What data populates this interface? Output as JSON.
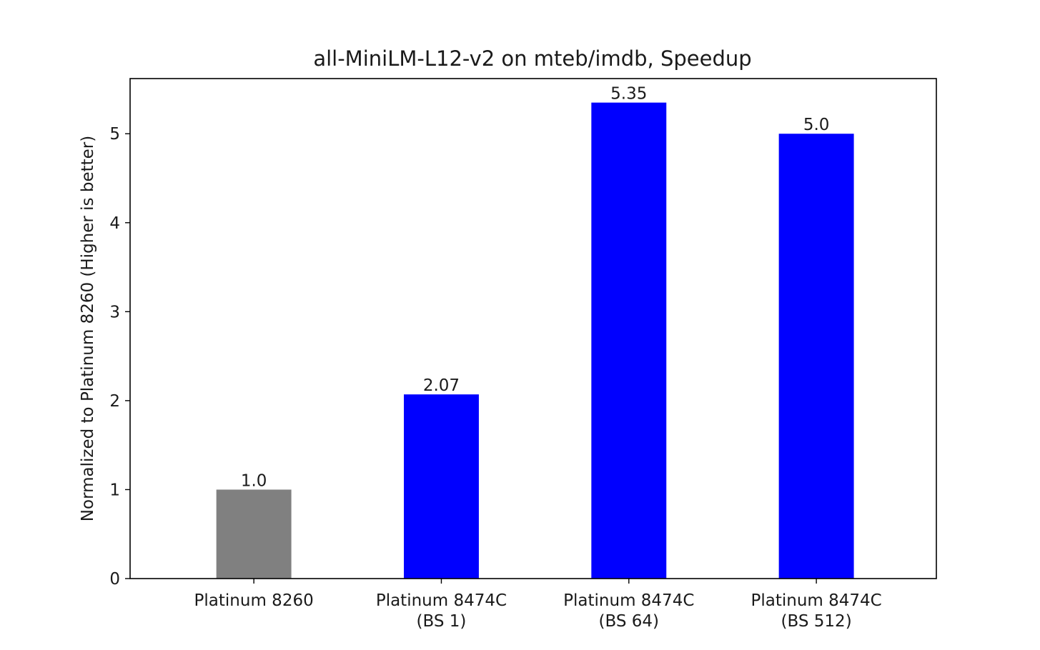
{
  "chart_data": {
    "type": "bar",
    "title": "all-MiniLM-L12-v2 on mteb/imdb, Speedup",
    "xlabel": "",
    "ylabel": "Normalized to Platinum 8260 (Higher is better)",
    "ylim": [
      0,
      5.62
    ],
    "yticks": [
      0,
      1,
      2,
      3,
      4,
      5
    ],
    "categories": [
      [
        "Platinum 8260"
      ],
      [
        "Platinum 8474C",
        "(BS 1)"
      ],
      [
        "Platinum 8474C",
        "(BS 64)"
      ],
      [
        "Platinum 8474C",
        "(BS 512)"
      ]
    ],
    "values": [
      1.0,
      2.07,
      5.35,
      5.0
    ],
    "value_labels": [
      "1.0",
      "2.07",
      "5.35",
      "5.0"
    ],
    "bar_colors": [
      "#808080",
      "#0000ff",
      "#0000ff",
      "#0000ff"
    ],
    "grid": false,
    "legend": "none"
  }
}
